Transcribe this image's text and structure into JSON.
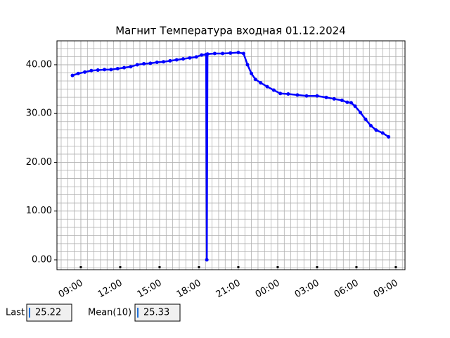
{
  "chart_data": {
    "type": "line",
    "title": "Магнит Температура входная 01.12.2024",
    "x": [
      8.36,
      8.8,
      9.3,
      9.8,
      10.3,
      10.8,
      11.3,
      11.8,
      12.3,
      12.8,
      13.3,
      13.8,
      14.3,
      14.8,
      15.3,
      15.8,
      16.3,
      16.8,
      17.3,
      17.8,
      18.2,
      18.55,
      18.6,
      18.65,
      19.2,
      19.8,
      20.4,
      21.0,
      21.4,
      21.7,
      22.0,
      22.3,
      22.7,
      23.2,
      23.7,
      24.2,
      24.8,
      25.5,
      26.2,
      27.0,
      27.7,
      28.3,
      28.9,
      29.3,
      29.6,
      29.9,
      30.3,
      30.7,
      31.1,
      31.5,
      32.0,
      32.45
    ],
    "series": [
      {
        "color": "#0000ff",
        "values": [
          37.8,
          38.2,
          38.5,
          38.8,
          38.9,
          39.0,
          39.0,
          39.2,
          39.4,
          39.6,
          40.0,
          40.2,
          40.3,
          40.5,
          40.6,
          40.8,
          41.0,
          41.2,
          41.4,
          41.6,
          42.0,
          42.1,
          0,
          42.2,
          42.3,
          42.3,
          42.4,
          42.5,
          42.3,
          40.0,
          38.2,
          37.0,
          36.3,
          35.5,
          34.8,
          34.1,
          34.0,
          33.8,
          33.6,
          33.6,
          33.3,
          33.0,
          32.7,
          32.3,
          32.2,
          31.5,
          30.2,
          28.8,
          27.5,
          26.6,
          26.0,
          25.22
        ]
      }
    ],
    "xlim": [
      7.18,
      33.7
    ],
    "xticks": [
      {
        "value": 9,
        "label": "09:00"
      },
      {
        "value": 12,
        "label": "12:00"
      },
      {
        "value": 15,
        "label": "15:00"
      },
      {
        "value": 18,
        "label": "18:00"
      },
      {
        "value": 21,
        "label": "21:00"
      },
      {
        "value": 24,
        "label": "00:00"
      },
      {
        "value": 27,
        "label": "03:00"
      },
      {
        "value": 30,
        "label": "06:00"
      },
      {
        "value": 33,
        "label": "09:00"
      }
    ],
    "ylim": [
      -2.02,
      44.9
    ],
    "yticks": [
      {
        "value": 0,
        "label": "0.00"
      },
      {
        "value": 10,
        "label": "10.00"
      },
      {
        "value": 20,
        "label": "20.00"
      },
      {
        "value": 30,
        "label": "30.00"
      },
      {
        "value": 40,
        "label": "40.00"
      }
    ],
    "grid": true
  },
  "footer": {
    "last_label": "Last",
    "last_value": "25.22",
    "mean_label": "Mean(10)",
    "mean_value": "25.33"
  }
}
